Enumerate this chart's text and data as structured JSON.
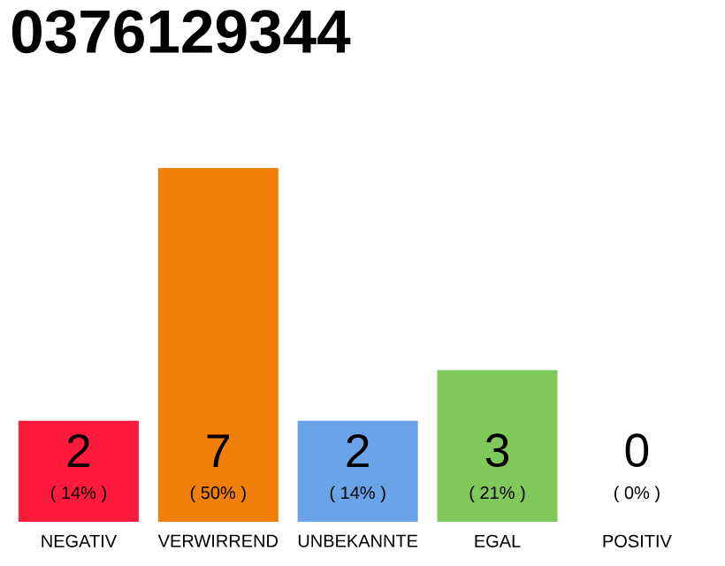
{
  "chart_data": {
    "type": "bar",
    "title": "0376129344",
    "categories": [
      "NEGATIV",
      "VERWIRREND",
      "UNBEKANNTE",
      "EGAL",
      "POSITIV"
    ],
    "values": [
      2,
      7,
      2,
      3,
      0
    ],
    "colors": [
      "#ff1a3c",
      "#f07f0a",
      "#6aa3e8",
      "#7ec95a",
      "#bdbdbd"
    ],
    "ylim": [
      0,
      7
    ],
    "data_labels": true,
    "annotations": [
      "( 14% )",
      "( 50% )",
      "( 14% )",
      "( 21% )",
      "( 0% )"
    ]
  }
}
